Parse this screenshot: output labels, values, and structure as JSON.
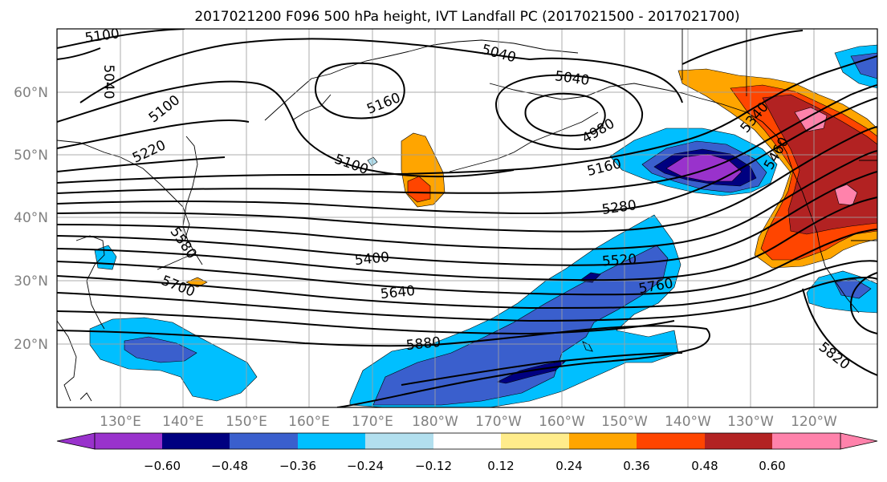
{
  "title": "2017021200 F096 500 hPa height, IVT Landfall PC (2017021500 - 2017021700)",
  "colors": {
    "c_m060": "#9932cc",
    "c_m048": "#000080",
    "c_m036": "#3a5fcd",
    "c_m024": "#00bfff",
    "c_m012": "#b2dfee",
    "c_0": "#ffffff",
    "c_012": "#ffec8b",
    "c_024": "#ffa500",
    "c_036": "#ff4500",
    "c_048": "#b22222",
    "c_060": "#ff82ab"
  },
  "lat_labels": [
    "60°N",
    "50°N",
    "40°N",
    "30°N",
    "20°N"
  ],
  "lon_labels": [
    "130°E",
    "140°E",
    "150°E",
    "160°E",
    "170°E",
    "180°W",
    "170°W",
    "160°W",
    "150°W",
    "140°W",
    "130°W",
    "120°W"
  ],
  "contour_labels": [
    "5100",
    "5040",
    "5100",
    "5160",
    "5040",
    "5040",
    "4980",
    "5220",
    "5100",
    "5160",
    "5280",
    "5580",
    "5400",
    "5520",
    "5700",
    "5640",
    "5760",
    "5880",
    "5820",
    "5340",
    "5460"
  ],
  "colorbar_ticks": [
    "−0.60",
    "−0.48",
    "−0.36",
    "−0.24",
    "−0.12",
    "0.12",
    "0.24",
    "0.36",
    "0.48",
    "0.60"
  ],
  "colorbar_colors": [
    "#9932cc",
    "#000080",
    "#3a5fcd",
    "#00bfff",
    "#b2dfee",
    "#ffffff",
    "#ffec8b",
    "#ffa500",
    "#ff4500",
    "#b22222",
    "#ff82ab"
  ]
}
